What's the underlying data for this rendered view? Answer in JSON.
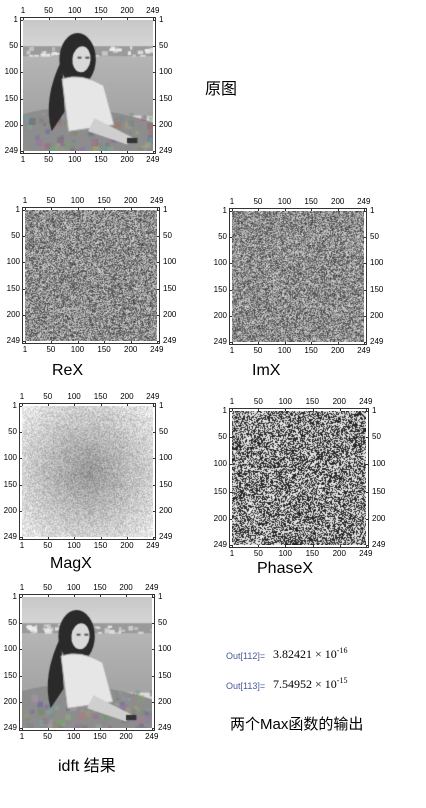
{
  "ticks": [
    "1",
    "50",
    "100",
    "150",
    "200",
    "249"
  ],
  "panels": {
    "original": {
      "caption": "原图",
      "kind": "photo"
    },
    "rex": {
      "caption": "ReX",
      "kind": "noise"
    },
    "imx": {
      "caption": "ImX",
      "kind": "noise"
    },
    "magx": {
      "caption": "MagX",
      "kind": "mag"
    },
    "phasex": {
      "caption": "PhaseX",
      "kind": "phase"
    },
    "idft": {
      "caption": "idft 结果",
      "kind": "photo"
    }
  },
  "outputs": [
    {
      "label": "Out[112]=",
      "mantissa": "3.82421",
      "times": "×",
      "base": "10",
      "exponent": "-16"
    },
    {
      "label": "Out[113]=",
      "mantissa": "7.54952",
      "times": "×",
      "base": "10",
      "exponent": "-15"
    }
  ],
  "note": "两个Max函数的输出"
}
